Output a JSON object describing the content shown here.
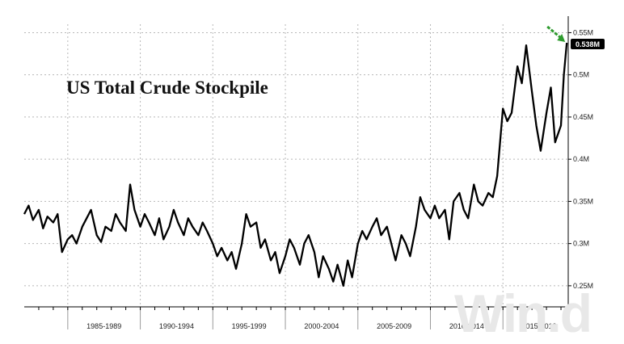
{
  "chart_data": {
    "type": "line",
    "title": "US Total Crude Stockpile",
    "xlabel": "",
    "ylabel": "",
    "x_range": [
      1982,
      2019.5
    ],
    "ylim": [
      0.225,
      0.56
    ],
    "y_ticks": [
      0.25,
      0.3,
      0.35,
      0.4,
      0.45,
      0.5,
      0.55
    ],
    "y_tick_labels": [
      "0.25M",
      "0.3M",
      "0.35M",
      "0.4M",
      "0.45M",
      "0.5M",
      "0.55M"
    ],
    "x_tick_labels": [
      "1985-1989",
      "1990-1994",
      "1995-1999",
      "2000-2004",
      "2005-2009",
      "2010-2014",
      "2015-2019"
    ],
    "last_value_label": "0.538M",
    "grid": true,
    "line_color": "#000000",
    "arrow_color": "#2e9b2e",
    "series": [
      {
        "x": [
          1982.0,
          1982.3,
          1982.6,
          1983.0,
          1983.3,
          1983.6,
          1984.0,
          1984.3,
          1984.6,
          1985.0,
          1985.3,
          1985.6,
          1986.0,
          1986.3,
          1986.6,
          1987.0,
          1987.3,
          1987.6,
          1988.0,
          1988.3,
          1988.6,
          1989.0,
          1989.3,
          1989.6,
          1990.0,
          1990.3,
          1990.6,
          1991.0,
          1991.3,
          1991.6,
          1992.0,
          1992.3,
          1992.6,
          1993.0,
          1993.3,
          1993.6,
          1994.0,
          1994.3,
          1994.6,
          1995.0,
          1995.3,
          1995.6,
          1996.0,
          1996.3,
          1996.6,
          1997.0,
          1997.3,
          1997.6,
          1998.0,
          1998.3,
          1998.6,
          1999.0,
          1999.3,
          1999.6,
          2000.0,
          2000.3,
          2000.6,
          2001.0,
          2001.3,
          2001.6,
          2002.0,
          2002.3,
          2002.6,
          2003.0,
          2003.3,
          2003.6,
          2004.0,
          2004.3,
          2004.6,
          2005.0,
          2005.3,
          2005.6,
          2006.0,
          2006.3,
          2006.6,
          2007.0,
          2007.3,
          2007.6,
          2008.0,
          2008.3,
          2008.6,
          2009.0,
          2009.3,
          2009.6,
          2010.0,
          2010.3,
          2010.6,
          2011.0,
          2011.3,
          2011.6,
          2012.0,
          2012.3,
          2012.6,
          2013.0,
          2013.3,
          2013.6,
          2014.0,
          2014.3,
          2014.6,
          2015.0,
          2015.3,
          2015.6,
          2016.0,
          2016.3,
          2016.6,
          2017.0,
          2017.3,
          2017.6,
          2018.0,
          2018.3,
          2018.6,
          2019.0,
          2019.2,
          2019.4
        ],
        "values": [
          0.335,
          0.345,
          0.328,
          0.34,
          0.318,
          0.332,
          0.325,
          0.335,
          0.29,
          0.305,
          0.31,
          0.3,
          0.32,
          0.33,
          0.34,
          0.31,
          0.302,
          0.32,
          0.315,
          0.335,
          0.325,
          0.315,
          0.37,
          0.34,
          0.32,
          0.335,
          0.325,
          0.31,
          0.33,
          0.305,
          0.32,
          0.34,
          0.325,
          0.31,
          0.33,
          0.32,
          0.31,
          0.325,
          0.315,
          0.3,
          0.285,
          0.295,
          0.28,
          0.29,
          0.27,
          0.3,
          0.335,
          0.32,
          0.325,
          0.295,
          0.305,
          0.28,
          0.29,
          0.265,
          0.285,
          0.305,
          0.295,
          0.275,
          0.3,
          0.31,
          0.29,
          0.26,
          0.285,
          0.27,
          0.255,
          0.275,
          0.25,
          0.28,
          0.26,
          0.3,
          0.315,
          0.305,
          0.32,
          0.33,
          0.31,
          0.32,
          0.3,
          0.28,
          0.31,
          0.3,
          0.285,
          0.32,
          0.355,
          0.34,
          0.33,
          0.345,
          0.33,
          0.34,
          0.305,
          0.35,
          0.36,
          0.34,
          0.33,
          0.37,
          0.35,
          0.345,
          0.36,
          0.355,
          0.38,
          0.46,
          0.445,
          0.455,
          0.51,
          0.49,
          0.535,
          0.48,
          0.44,
          0.41,
          0.455,
          0.485,
          0.42,
          0.44,
          0.5,
          0.538
        ]
      }
    ]
  }
}
